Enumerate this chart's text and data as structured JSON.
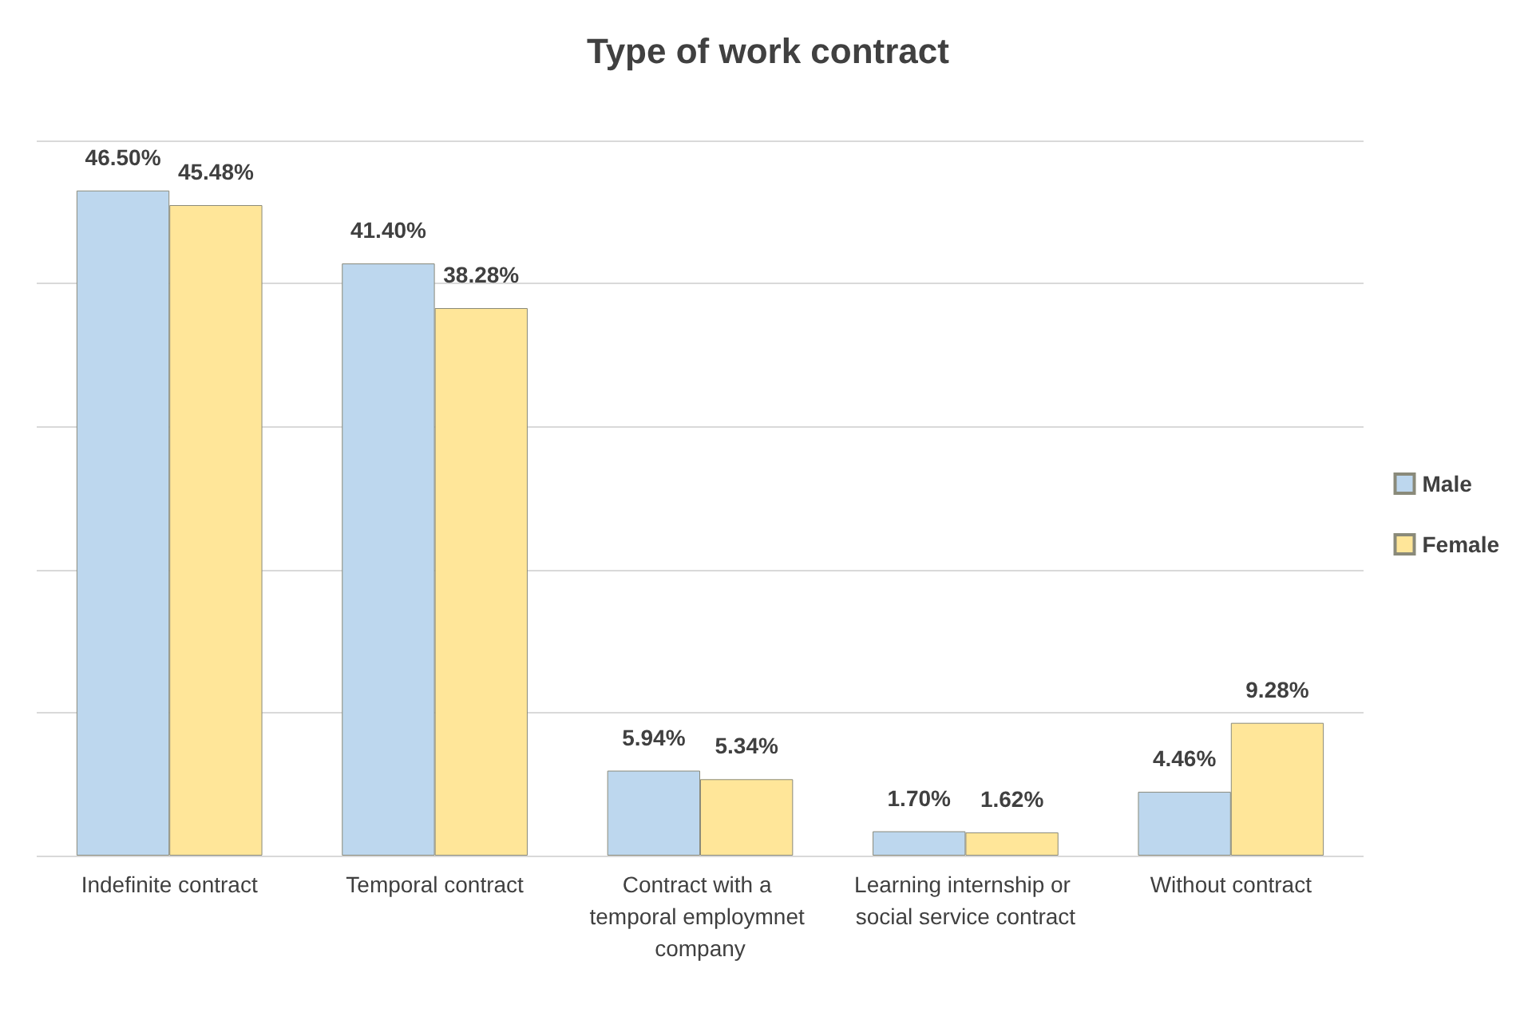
{
  "chart_data": {
    "type": "bar",
    "title": "Type of work contract",
    "categories": [
      "Indefinite contract",
      "Temporal contract",
      "Contract with a temporal employmnet company",
      "Learning internship or social service contract",
      "Without contract"
    ],
    "series": [
      {
        "name": "Male",
        "color": "#bdd7ee",
        "values": [
          46.5,
          41.4,
          5.94,
          1.7,
          4.46
        ],
        "value_labels": [
          "46.50%",
          "41.40%",
          "5.94%",
          "1.70%",
          "4.46%"
        ]
      },
      {
        "name": "Female",
        "color": "#ffe699",
        "values": [
          45.48,
          38.28,
          5.34,
          1.62,
          9.28
        ],
        "value_labels": [
          "45.48%",
          "38.28%",
          "5.34%",
          "1.62%",
          "9.28%"
        ]
      }
    ],
    "grid": "y",
    "legend": "right",
    "tick_labels": "x"
  }
}
